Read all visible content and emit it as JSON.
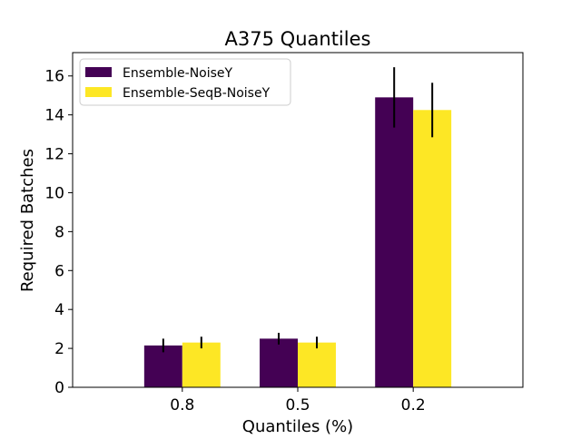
{
  "chart_data": {
    "type": "bar",
    "title": "A375 Quantiles",
    "xlabel": "Quantiles (%)",
    "ylabel": "Required Batches",
    "categories": [
      "0.8",
      "0.5",
      "0.2"
    ],
    "series": [
      {
        "name": "Ensemble-NoiseY",
        "color": "#440154",
        "values": [
          2.15,
          2.5,
          14.9
        ],
        "error": [
          0.35,
          0.3,
          1.55
        ]
      },
      {
        "name": "Ensemble-SeqB-NoiseY",
        "color": "#fde725",
        "values": [
          2.3,
          2.3,
          14.25
        ],
        "error": [
          0.3,
          0.3,
          1.4
        ]
      }
    ],
    "ylim": [
      0,
      17.2
    ],
    "yticks": [
      0,
      2,
      4,
      6,
      8,
      10,
      12,
      14,
      16
    ],
    "grid": false,
    "legend_position": "top-left"
  }
}
